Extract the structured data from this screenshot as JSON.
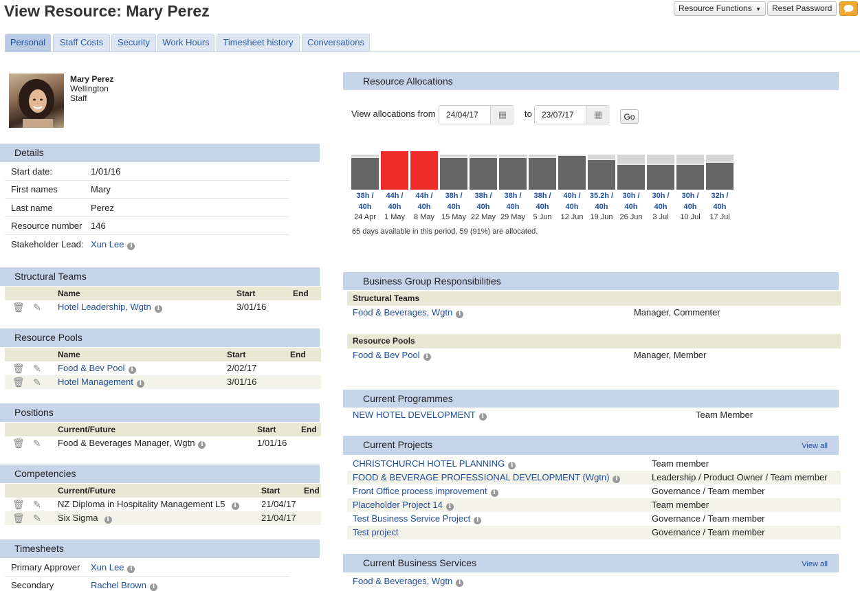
{
  "header": {
    "title": "View Resource: Mary Perez",
    "resource_functions": "Resource Functions",
    "reset_password": "Reset Password"
  },
  "tabs": [
    "Personal",
    "Staff Costs",
    "Security",
    "Work Hours",
    "Timesheet history",
    "Conversations"
  ],
  "profile": {
    "name": "Mary Perez",
    "location": "Wellington",
    "type": "Staff"
  },
  "details": {
    "title": "Details",
    "rows": [
      {
        "k": "Start date:",
        "v": "1/01/16"
      },
      {
        "k": "First names",
        "v": "Mary"
      },
      {
        "k": "Last name",
        "v": "Perez"
      },
      {
        "k": "Resource number",
        "v": "146"
      },
      {
        "k": "Stakeholder Lead:",
        "v": "Xun Lee"
      }
    ]
  },
  "structural_teams": {
    "title": "Structural Teams",
    "cols": [
      "Name",
      "Start",
      "End"
    ],
    "rows": [
      {
        "name": "Hotel Leadership, Wgtn",
        "start": "3/01/16",
        "end": ""
      }
    ]
  },
  "resource_pools": {
    "title": "Resource Pools",
    "cols": [
      "Name",
      "Start",
      "End"
    ],
    "rows": [
      {
        "name": "Food & Bev Pool",
        "start": "2/02/17",
        "end": ""
      },
      {
        "name": "Hotel Management",
        "start": "3/01/16",
        "end": ""
      }
    ]
  },
  "positions": {
    "title": "Positions",
    "cols": [
      "Current/Future",
      "Start",
      "End"
    ],
    "rows": [
      {
        "name": "Food & Beverages Manager, Wgtn",
        "start": "1/01/16",
        "end": ""
      }
    ]
  },
  "competencies": {
    "title": "Competencies",
    "cols": [
      "Current/Future",
      "Start",
      "End"
    ],
    "rows": [
      {
        "name": "NZ Diploma in Hospitality Management L5",
        "start": "21/04/17",
        "end": ""
      },
      {
        "name": "Six Sigma",
        "start": "21/04/17",
        "end": ""
      }
    ]
  },
  "timesheets": {
    "title": "Timesheets",
    "rows": [
      {
        "k": "Primary Approver",
        "v": "Xun Lee"
      },
      {
        "k": "Secondary",
        "v": "Rachel Brown"
      }
    ]
  },
  "allocations": {
    "title": "Resource Allocations",
    "from_label": "View allocations from",
    "from": "24/04/17",
    "to_label": "to",
    "to": "23/07/17",
    "go": "Go",
    "summary": "65 days available in this period, 59 (91%) are allocated."
  },
  "chart_data": {
    "type": "bar",
    "categories": [
      "24 Apr",
      "1 May",
      "8 May",
      "15 May",
      "22 May",
      "29 May",
      "5 Jun",
      "12 Jun",
      "19 Jun",
      "26 Jun",
      "3 Jul",
      "10 Jul",
      "17 Jul"
    ],
    "allocated": [
      38,
      44,
      44,
      38,
      38,
      38,
      38,
      40,
      35.2,
      30,
      30,
      30,
      32
    ],
    "available": [
      40,
      40,
      40,
      40,
      40,
      40,
      40,
      40,
      40,
      40,
      40,
      40,
      40
    ],
    "labels": [
      "38h /",
      "44h /",
      "44h /",
      "38h /",
      "38h /",
      "38h /",
      "38h /",
      "40h /",
      "35.2h /",
      "30h /",
      "30h /",
      "30h /",
      "32h /"
    ],
    "labels2": [
      "40h",
      "40h",
      "40h",
      "40h",
      "40h",
      "40h",
      "40h",
      "40h",
      "40h",
      "40h",
      "40h",
      "40h",
      "40h"
    ],
    "colors": {
      "normal": "#666666",
      "over": "#ee2b2b",
      "capacity": "#d6d6d6"
    }
  },
  "bgr": {
    "title": "Business Group Responsibilities",
    "structural_label": "Structural Teams",
    "structural": [
      {
        "name": "Food & Beverages, Wgtn",
        "role": "Manager, Commenter"
      }
    ],
    "pools_label": "Resource Pools",
    "pools": [
      {
        "name": "Food & Bev Pool",
        "role": "Manager, Member"
      }
    ]
  },
  "programmes": {
    "title": "Current Programmes",
    "rows": [
      {
        "name": "NEW HOTEL DEVELOPMENT",
        "role": "Team Member"
      }
    ]
  },
  "projects": {
    "title": "Current Projects",
    "view_all": "View all",
    "rows": [
      {
        "name": "CHRISTCHURCH HOTEL PLANNING",
        "role": "Team member"
      },
      {
        "name": "FOOD & BEVERAGE PROFESSIONAL DEVELOPMENT (Wgtn)",
        "role": "Leadership / Product Owner / Team member"
      },
      {
        "name": "Front Office process improvement",
        "role": "Governance / Team member"
      },
      {
        "name": "Placeholder Project 14",
        "role": "Team member"
      },
      {
        "name": "Test Business Service Project",
        "role": "Governance / Team member"
      },
      {
        "name": "Test project",
        "role": "Governance / Team member"
      }
    ]
  },
  "services": {
    "title": "Current Business Services",
    "view_all": "View all",
    "rows": [
      {
        "name": "Food & Beverages, Wgtn"
      }
    ]
  }
}
